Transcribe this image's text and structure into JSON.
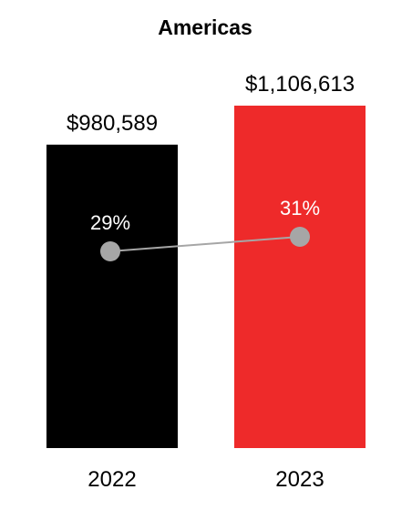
{
  "chart_data": {
    "type": "bar",
    "title": "Americas",
    "categories": [
      "2022",
      "2023"
    ],
    "values": [
      980589,
      1106613
    ],
    "value_labels": [
      "$980,589",
      "$1,106,613"
    ],
    "bar_colors": [
      "#000000",
      "#ee2a2a"
    ],
    "ylim": [
      0,
      1106613
    ],
    "overlay_line": {
      "values": [
        29,
        31
      ],
      "labels": [
        "29%",
        "31%"
      ],
      "ylim": [
        0,
        100
      ],
      "marker_color": "#a6a6a6",
      "line_color": "#a6a6a6"
    },
    "legend": "none",
    "grid": false
  }
}
